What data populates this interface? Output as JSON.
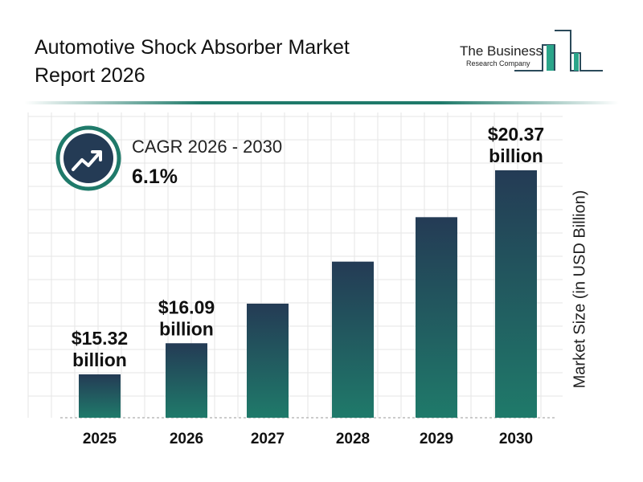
{
  "header": {
    "title": "Automotive Shock Absorber Market Report 2026"
  },
  "logo": {
    "line1": "The Business",
    "line2": "Research Company"
  },
  "cagr": {
    "label": "CAGR 2026 - 2030",
    "value": "6.1%",
    "icon": "trending-up-icon"
  },
  "colors": {
    "bar_top": "#243b55",
    "bar_bottom": "#1f7a6a",
    "accent": "#1f7a6a"
  },
  "chart_data": {
    "type": "bar",
    "categories": [
      "2025",
      "2026",
      "2027",
      "2028",
      "2029",
      "2030"
    ],
    "values": [
      15.32,
      16.09,
      17.07,
      18.11,
      19.21,
      20.37
    ],
    "data_labels": [
      {
        "category": "2025",
        "line1": "$15.32",
        "line2": "billion"
      },
      {
        "category": "2026",
        "line1": "$16.09",
        "line2": "billion"
      },
      {
        "category": "2030",
        "line1": "$20.37",
        "line2": "billion"
      }
    ],
    "ylabel": "Market Size (in USD Billion)",
    "grid": true
  }
}
